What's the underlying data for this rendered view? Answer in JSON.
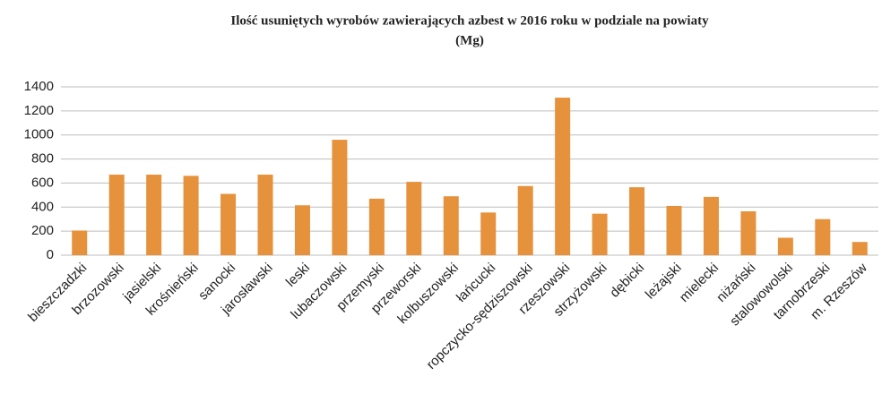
{
  "chart_data": {
    "type": "bar",
    "title": "Ilość usuniętych wyrobów zawierających azbest w 2016 roku w podziale na powiaty",
    "subtitle": "(Mg)",
    "categories": [
      "bieszczadzki",
      "brzozowski",
      "jasielski",
      "krośnieński",
      "sanocki",
      "jarosławski",
      "leski",
      "lubaczowski",
      "przemyski",
      "przeworski",
      "kolbuszowski",
      "łańcucki",
      "ropczycko-sędziszowski",
      "rzeszowski",
      "strzyżowski",
      "dębicki",
      "leżajski",
      "mielecki",
      "niżański",
      "stalowowolski",
      "tarnobrzeski",
      "m. Rzeszów"
    ],
    "values": [
      205,
      670,
      670,
      660,
      510,
      670,
      415,
      960,
      470,
      610,
      490,
      355,
      575,
      1310,
      345,
      565,
      410,
      485,
      365,
      145,
      300,
      110
    ],
    "color": "#e6913b",
    "ylim": [
      0,
      1400
    ],
    "yticks": [
      0,
      200,
      400,
      600,
      800,
      1000,
      1200,
      1400
    ],
    "grid": true
  }
}
